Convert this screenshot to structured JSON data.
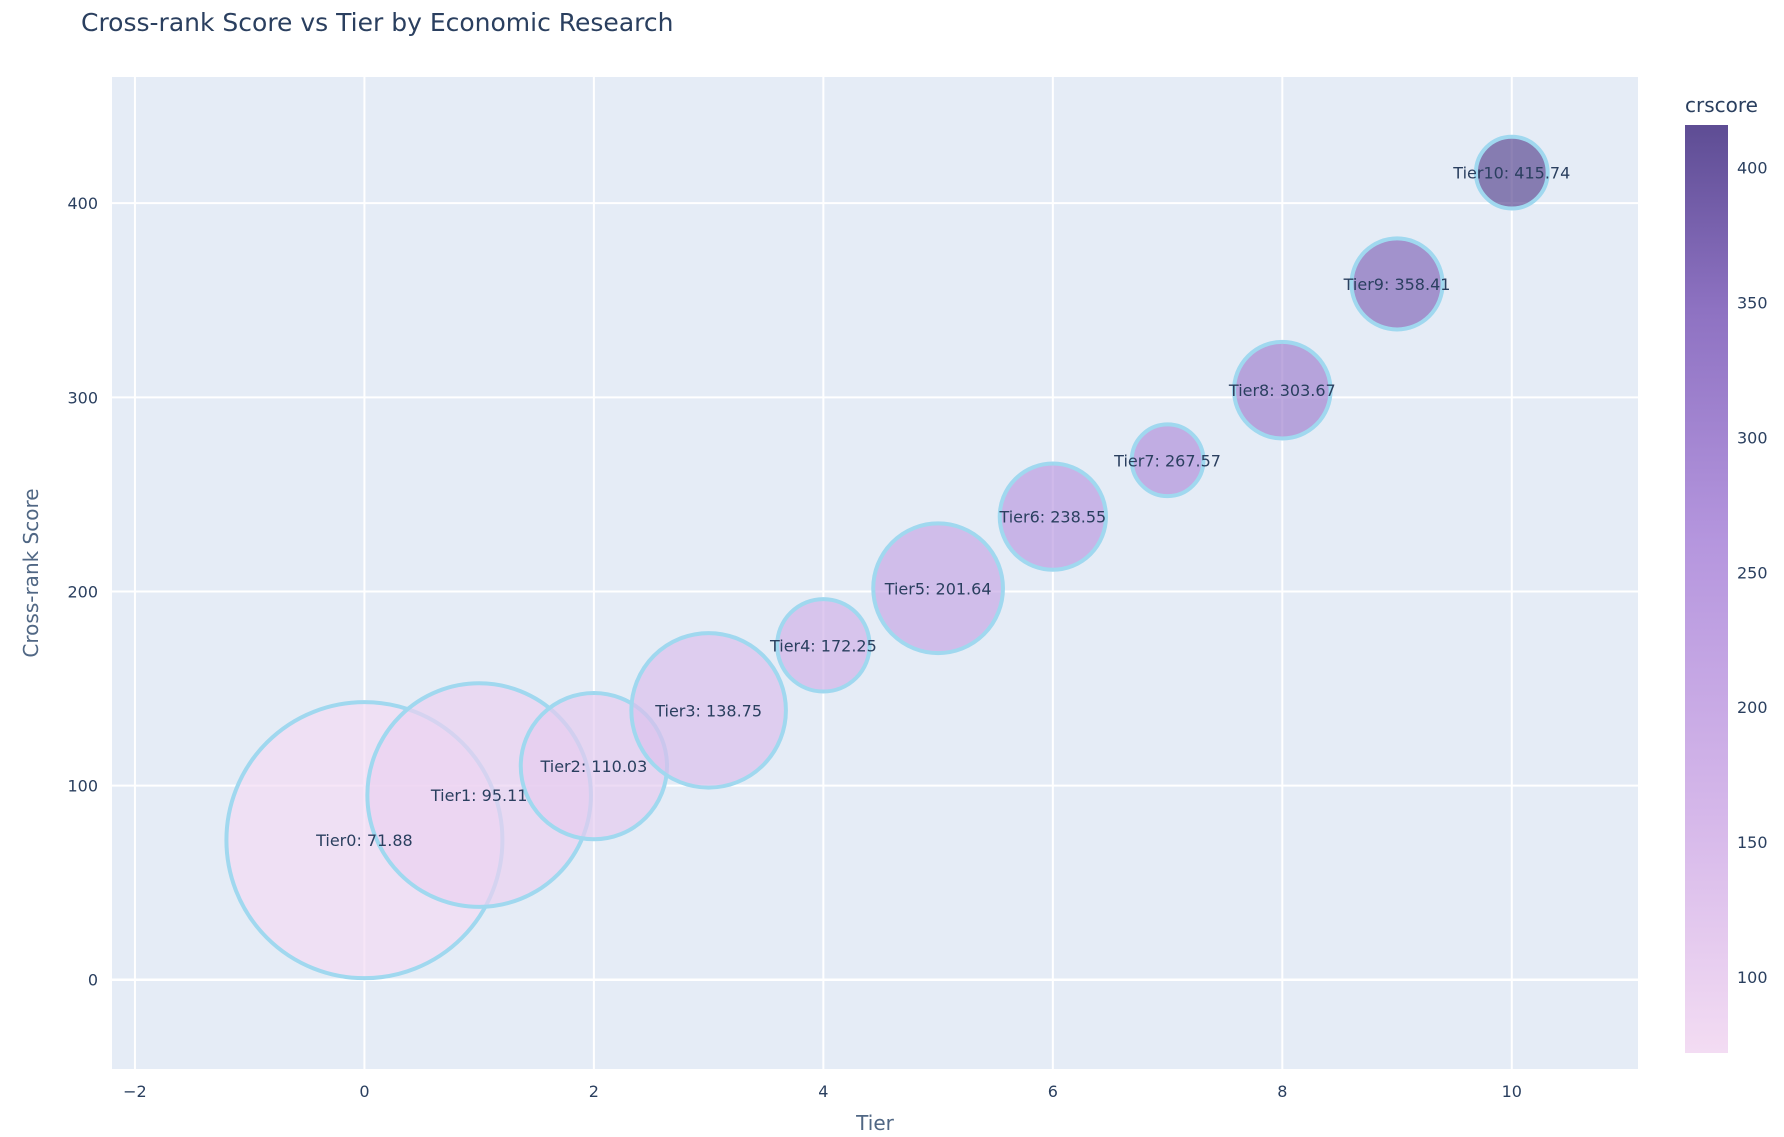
{
  "chart_data": {
    "type": "scatter",
    "title": "Cross-rank Score vs Tier by Economic Research",
    "xlabel": "Tier",
    "ylabel": "Cross-rank Score",
    "xlim": [
      -2.2,
      11.1
    ],
    "ylim": [
      -46,
      465
    ],
    "x_ticks": [
      -2,
      0,
      2,
      4,
      6,
      8,
      10
    ],
    "y_ticks": [
      0,
      100,
      200,
      300,
      400
    ],
    "grid": true,
    "colorbar": {
      "title": "crscore",
      "range": [
        71.88,
        415.74
      ],
      "ticks": [
        100,
        150,
        200,
        250,
        300,
        350,
        400
      ],
      "colors": [
        "#f3dcf3",
        "#d6b8ea",
        "#b596de",
        "#8e72c2",
        "#5e4d94"
      ]
    },
    "marker_outline_color": "#a0d8ef",
    "points": [
      {
        "x": 0,
        "y": 71.88,
        "label": "Tier0: 71.88",
        "size": 1.0
      },
      {
        "x": 1,
        "y": 95.11,
        "label": "Tier1: 95.11",
        "size": 0.81
      },
      {
        "x": 2,
        "y": 110.03,
        "label": "Tier2: 110.03",
        "size": 0.53
      },
      {
        "x": 3,
        "y": 138.75,
        "label": "Tier3: 138.75",
        "size": 0.56
      },
      {
        "x": 4,
        "y": 172.25,
        "label": "Tier4: 172.25",
        "size": 0.335
      },
      {
        "x": 5,
        "y": 201.64,
        "label": "Tier5: 201.64",
        "size": 0.47
      },
      {
        "x": 6,
        "y": 238.55,
        "label": "Tier6: 238.55",
        "size": 0.385
      },
      {
        "x": 7,
        "y": 267.57,
        "label": "Tier7: 267.57",
        "size": 0.26
      },
      {
        "x": 8,
        "y": 303.67,
        "label": "Tier8: 303.67",
        "size": 0.35
      },
      {
        "x": 9,
        "y": 358.41,
        "label": "Tier9: 358.41",
        "size": 0.33
      },
      {
        "x": 10,
        "y": 415.74,
        "label": "Tier10: 415.74",
        "size": 0.26
      }
    ]
  }
}
